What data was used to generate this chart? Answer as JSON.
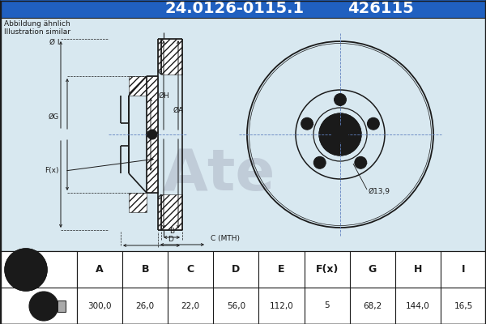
{
  "part_number": "24.0126-0115.1",
  "ref_number": "426115",
  "note_line1": "Abbildung ähnlich",
  "note_line2": "Illustration similar",
  "bg_color": "#ffffff",
  "title_bg": "#2060c0",
  "title_text_color": "#ffffff",
  "diagram_bg": "#d8e8f0",
  "table_bg": "#ffffff",
  "black": "#1a1a1a",
  "dim_color": "#1a1a1a",
  "center_line_color": "#6080c0",
  "table_headers": [
    "A",
    "B",
    "C",
    "D",
    "E",
    "F(x)",
    "G",
    "H",
    "I"
  ],
  "table_values": [
    "300,0",
    "26,0",
    "22,0",
    "56,0",
    "112,0",
    "5",
    "68,2",
    "144,0",
    "16,5"
  ],
  "dim_label_phi13": "Ø13,9",
  "title_fontsize": 14,
  "note_fontsize": 6.5
}
